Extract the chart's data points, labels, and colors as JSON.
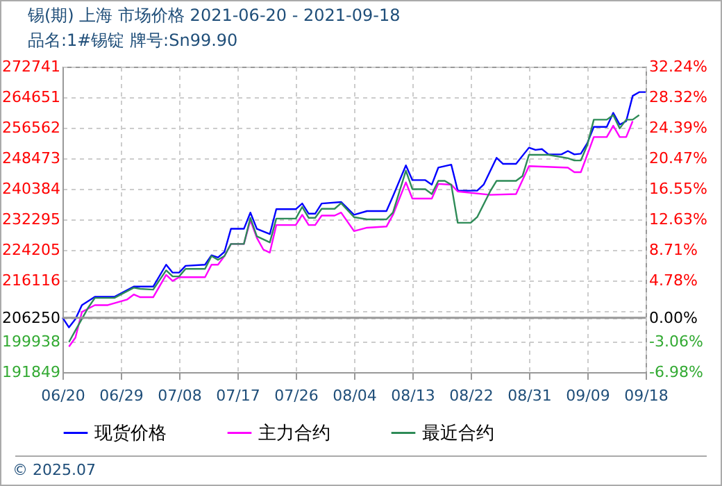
{
  "chart_data": {
    "type": "line",
    "title": "锡(期) 上海 市场价格 2021-06-20 - 2021-09-18",
    "subtitle": "品名:1#锡锭 牌号:Sn99.90",
    "annotations": [
      "© 2025.07"
    ],
    "xlim": [
      "2021-06-20",
      "2021-09-18"
    ],
    "xticks": [
      {
        "value": "2021-06-20",
        "label": "06/20"
      },
      {
        "value": "2021-06-29",
        "label": "06/29"
      },
      {
        "value": "2021-07-08",
        "label": "07/08"
      },
      {
        "value": "2021-07-17",
        "label": "07/17"
      },
      {
        "value": "2021-07-26",
        "label": "07/26"
      },
      {
        "value": "2021-08-04",
        "label": "08/04"
      },
      {
        "value": "2021-08-13",
        "label": "08/13"
      },
      {
        "value": "2021-08-22",
        "label": "08/22"
      },
      {
        "value": "2021-08-31",
        "label": "08/31"
      },
      {
        "value": "2021-09-09",
        "label": "09/09"
      },
      {
        "value": "2021-09-18",
        "label": "09/18"
      }
    ],
    "ylim": [
      191849,
      272741
    ],
    "yticks": [
      272741,
      264651,
      256562,
      248473,
      240384,
      232295,
      224205,
      216116,
      {
        "value": 208027,
        "label": null
      },
      206250,
      199938,
      191849
    ],
    "y2lim": [
      -6.98,
      32.24
    ],
    "y2ticks": [
      {
        "value": 32.24,
        "label": "32.24%"
      },
      {
        "value": 28.32,
        "label": "28.32%"
      },
      {
        "value": 24.39,
        "label": "24.39%"
      },
      {
        "value": 20.47,
        "label": "20.47%"
      },
      {
        "value": 16.55,
        "label": "16.55%"
      },
      {
        "value": 12.63,
        "label": "12.63%"
      },
      {
        "value": 8.71,
        "label": "8.71%"
      },
      {
        "value": 4.78,
        "label": "4.78%"
      },
      {
        "value": 0,
        "label": "0.00%"
      },
      {
        "value": -3.06,
        "label": "-3.06%"
      },
      {
        "value": -6.98,
        "label": "-6.98%"
      }
    ],
    "ref_lines": [
      {
        "axis": "y2",
        "value": 0,
        "color": "#999999"
      }
    ],
    "grid": true,
    "legend": "bottom",
    "line_style": "solid",
    "series": [
      {
        "name": "现货价格",
        "color": "#0000ff",
        "x": [
          "2021-06-20",
          "2021-06-21",
          "2021-06-22",
          "2021-06-23",
          "2021-06-25",
          "2021-06-28",
          "2021-07-01",
          "2021-07-04",
          "2021-07-06",
          "2021-07-07",
          "2021-07-08",
          "2021-07-09",
          "2021-07-12",
          "2021-07-13",
          "2021-07-14",
          "2021-07-15",
          "2021-07-16",
          "2021-07-18",
          "2021-07-19",
          "2021-07-20",
          "2021-07-22",
          "2021-07-23",
          "2021-07-26",
          "2021-07-27",
          "2021-07-28",
          "2021-07-29",
          "2021-07-30",
          "2021-08-02",
          "2021-08-04",
          "2021-08-06",
          "2021-08-09",
          "2021-08-10",
          "2021-08-12",
          "2021-08-13",
          "2021-08-15",
          "2021-08-16",
          "2021-08-17",
          "2021-08-19",
          "2021-08-20",
          "2021-08-23",
          "2021-08-24",
          "2021-08-26",
          "2021-08-27",
          "2021-08-29",
          "2021-08-31",
          "2021-09-01",
          "2021-09-02",
          "2021-09-03",
          "2021-09-05",
          "2021-09-06",
          "2021-09-07",
          "2021-09-08",
          "2021-09-09",
          "2021-09-10",
          "2021-09-12",
          "2021-09-13",
          "2021-09-14",
          "2021-09-15",
          "2021-09-16",
          "2021-09-17",
          "2021-09-18"
        ],
        "values": [
          206300,
          203700,
          205900,
          209600,
          211800,
          211800,
          214500,
          214500,
          220300,
          218200,
          218200,
          220000,
          220300,
          222800,
          222200,
          223700,
          229800,
          229800,
          234100,
          229800,
          228400,
          235000,
          235000,
          236500,
          233800,
          233800,
          236500,
          236900,
          233500,
          234500,
          234500,
          238400,
          246600,
          242700,
          242700,
          241500,
          246000,
          246800,
          239900,
          239900,
          241500,
          248600,
          247000,
          247000,
          251300,
          250700,
          250900,
          249500,
          249500,
          250400,
          249500,
          249700,
          252500,
          256800,
          256800,
          260500,
          257400,
          258300,
          265000,
          266000,
          266000
        ]
      },
      {
        "name": "主力合约",
        "color": "#ff00ff",
        "x": [
          "2021-06-21",
          "2021-06-22",
          "2021-06-23",
          "2021-06-25",
          "2021-06-27",
          "2021-06-30",
          "2021-07-01",
          "2021-07-02",
          "2021-07-04",
          "2021-07-06",
          "2021-07-07",
          "2021-07-08",
          "2021-07-12",
          "2021-07-13",
          "2021-07-14",
          "2021-07-15",
          "2021-07-16",
          "2021-07-18",
          "2021-07-19",
          "2021-07-20",
          "2021-07-21",
          "2021-07-22",
          "2021-07-23",
          "2021-07-26",
          "2021-07-27",
          "2021-07-28",
          "2021-07-29",
          "2021-07-30",
          "2021-08-01",
          "2021-08-02",
          "2021-08-04",
          "2021-08-06",
          "2021-08-09",
          "2021-08-10",
          "2021-08-12",
          "2021-08-13",
          "2021-08-16",
          "2021-08-17",
          "2021-08-19",
          "2021-08-20",
          "2021-08-25",
          "2021-08-29",
          "2021-08-31",
          "2021-09-06",
          "2021-09-07",
          "2021-09-08",
          "2021-09-10",
          "2021-09-12",
          "2021-09-13",
          "2021-09-14",
          "2021-09-15",
          "2021-09-16"
        ],
        "values": [
          198600,
          201000,
          207800,
          209600,
          209600,
          211100,
          212400,
          211700,
          211700,
          217600,
          216000,
          217000,
          217000,
          220300,
          220300,
          222600,
          225800,
          225800,
          232100,
          227400,
          224300,
          223500,
          230800,
          230800,
          233500,
          230800,
          230800,
          233300,
          233300,
          234100,
          229200,
          230100,
          230400,
          233500,
          242100,
          237800,
          237800,
          241700,
          241500,
          239700,
          238800,
          239000,
          246400,
          246000,
          244800,
          244800,
          254100,
          254100,
          257100,
          254100,
          254100,
          258300
        ]
      },
      {
        "name": "最近合约",
        "color": "#2e8b57",
        "x": [
          "2021-06-21",
          "2021-06-22",
          "2021-06-24",
          "2021-06-25",
          "2021-06-28",
          "2021-07-01",
          "2021-07-02",
          "2021-07-04",
          "2021-07-06",
          "2021-07-07",
          "2021-07-08",
          "2021-07-09",
          "2021-07-12",
          "2021-07-13",
          "2021-07-14",
          "2021-07-15",
          "2021-07-16",
          "2021-07-18",
          "2021-07-19",
          "2021-07-20",
          "2021-07-22",
          "2021-07-23",
          "2021-07-26",
          "2021-07-27",
          "2021-07-28",
          "2021-07-29",
          "2021-07-30",
          "2021-08-01",
          "2021-08-02",
          "2021-08-04",
          "2021-08-06",
          "2021-08-09",
          "2021-08-10",
          "2021-08-12",
          "2021-08-13",
          "2021-08-15",
          "2021-08-16",
          "2021-08-17",
          "2021-08-18",
          "2021-08-19",
          "2021-08-20",
          "2021-08-22",
          "2021-08-23",
          "2021-08-25",
          "2021-08-26",
          "2021-08-29",
          "2021-08-30",
          "2021-08-31",
          "2021-09-03",
          "2021-09-06",
          "2021-09-07",
          "2021-09-08",
          "2021-09-09",
          "2021-09-10",
          "2021-09-12",
          "2021-09-13",
          "2021-09-14",
          "2021-09-15",
          "2021-09-16",
          "2021-09-17"
        ],
        "values": [
          199800,
          202900,
          209000,
          211500,
          211500,
          214200,
          213900,
          213700,
          218800,
          217200,
          217200,
          219200,
          219200,
          222600,
          221600,
          222600,
          225800,
          225800,
          232700,
          227800,
          226200,
          232500,
          232500,
          235600,
          232700,
          232700,
          235100,
          235100,
          236600,
          232900,
          232300,
          232300,
          234100,
          245200,
          240300,
          240300,
          239000,
          242500,
          242500,
          241500,
          231400,
          231400,
          232900,
          239700,
          242500,
          242500,
          243800,
          249400,
          249400,
          248500,
          247900,
          247900,
          252000,
          258700,
          258700,
          259900,
          256400,
          258700,
          258700,
          259900
        ]
      }
    ]
  }
}
